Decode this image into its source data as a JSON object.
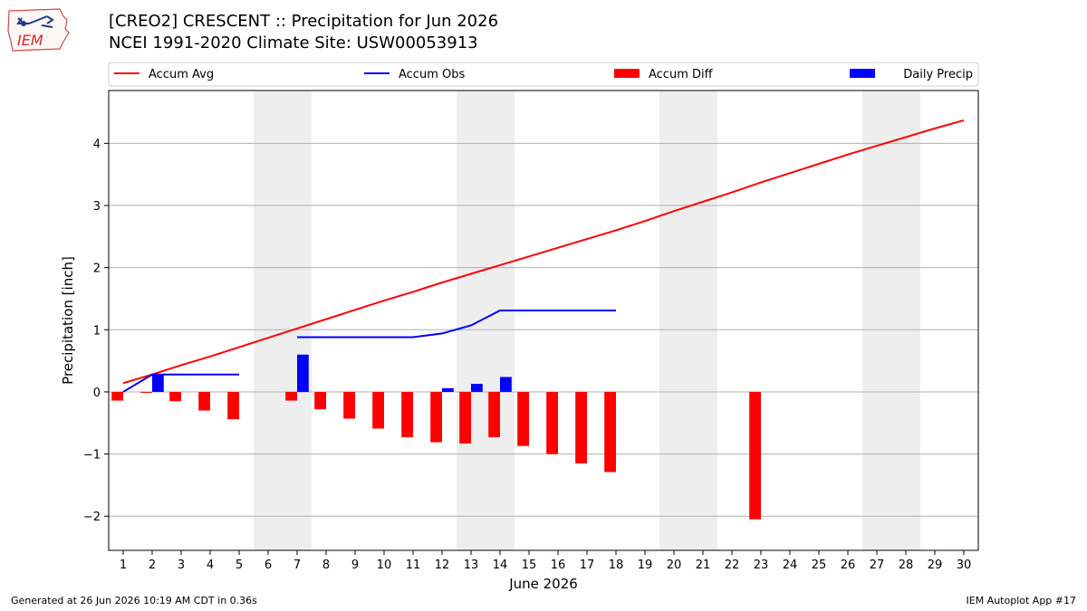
{
  "header": {
    "title_line1": "[CREO2] CRESCENT :: Precipitation for Jun 2026",
    "title_line2": "NCEI 1991-2020 Climate Site: USW00053913",
    "logo_text": "IEM"
  },
  "footer": {
    "generated": "Generated at 26 Jun 2026 10:19 AM CDT in 0.36s",
    "app": "IEM Autoplot App #17"
  },
  "colors": {
    "avg": "#ff0000",
    "obs": "#0000ff",
    "diff": "#ff0000",
    "daily": "#0000ff",
    "weekend": "#eeeeee",
    "grid": "#b0b0b0"
  },
  "chart_data": {
    "type": "bar",
    "xlabel": "June 2026",
    "ylabel": "Precipitation [inch]",
    "xlim": [
      0.5,
      30.5
    ],
    "ylim": [
      -2.55,
      4.85
    ],
    "y_ticks": [
      -2,
      -1,
      0,
      1,
      2,
      3,
      4
    ],
    "y_tick_labels": [
      "−2",
      "−1",
      "0",
      "1",
      "2",
      "3",
      "4"
    ],
    "x": [
      1,
      2,
      3,
      4,
      5,
      6,
      7,
      8,
      9,
      10,
      11,
      12,
      13,
      14,
      15,
      16,
      17,
      18,
      19,
      20,
      21,
      22,
      23,
      24,
      25,
      26,
      27,
      28,
      29,
      30
    ],
    "grid": "horizontal",
    "legend": {
      "placement": "top",
      "entries": [
        {
          "label": "Accum Avg",
          "kind": "line",
          "color_key": "avg"
        },
        {
          "label": "Accum Obs",
          "kind": "line",
          "color_key": "obs"
        },
        {
          "label": "Accum Diff",
          "kind": "bar",
          "color_key": "diff"
        },
        {
          "label": "Daily Precip",
          "kind": "bar",
          "color_key": "daily"
        }
      ]
    },
    "weekend_shading": [
      [
        5.5,
        7.5
      ],
      [
        12.5,
        14.5
      ],
      [
        19.5,
        21.5
      ],
      [
        26.5,
        28.5
      ]
    ],
    "series": [
      {
        "name": "Accum Avg",
        "kind": "line",
        "x": [
          1,
          2,
          3,
          4,
          5,
          6,
          7,
          8,
          9,
          10,
          11,
          12,
          13,
          14,
          15,
          16,
          17,
          18,
          19,
          20,
          21,
          22,
          23,
          24,
          25,
          26,
          27,
          28,
          29,
          30
        ],
        "values": [
          0.14,
          0.28,
          0.43,
          0.57,
          0.72,
          0.87,
          1.02,
          1.17,
          1.32,
          1.47,
          1.61,
          1.76,
          1.9,
          2.04,
          2.18,
          2.32,
          2.46,
          2.6,
          2.75,
          2.91,
          3.06,
          3.21,
          3.37,
          3.52,
          3.67,
          3.82,
          3.96,
          4.1,
          4.24,
          4.37
        ]
      },
      {
        "name": "Accum Obs",
        "kind": "line",
        "segments": [
          {
            "x": [
              1,
              2,
              3,
              4,
              5
            ],
            "values": [
              0.0,
              0.28,
              0.28,
              0.28,
              0.28
            ]
          },
          {
            "x": [
              7,
              8,
              9,
              10,
              11,
              12,
              13,
              14,
              15,
              16,
              17,
              18
            ],
            "values": [
              0.88,
              0.88,
              0.88,
              0.88,
              0.88,
              0.94,
              1.07,
              1.31,
              1.31,
              1.31,
              1.31,
              1.31
            ]
          }
        ]
      },
      {
        "name": "Accum Diff",
        "kind": "bar",
        "offset": -0.2,
        "x": [
          1,
          2,
          3,
          4,
          5,
          7,
          8,
          9,
          10,
          11,
          12,
          13,
          14,
          15,
          16,
          17,
          18,
          23
        ],
        "values": [
          -0.14,
          -0.01,
          -0.15,
          -0.3,
          -0.44,
          -0.14,
          -0.28,
          -0.43,
          -0.59,
          -0.73,
          -0.81,
          -0.83,
          -0.73,
          -0.87,
          -1.0,
          -1.15,
          -1.29,
          -2.05
        ]
      },
      {
        "name": "Daily Precip",
        "kind": "bar",
        "offset": 0.2,
        "x": [
          2,
          7,
          12,
          13,
          14
        ],
        "values": [
          0.28,
          0.6,
          0.06,
          0.13,
          0.24
        ]
      }
    ]
  }
}
